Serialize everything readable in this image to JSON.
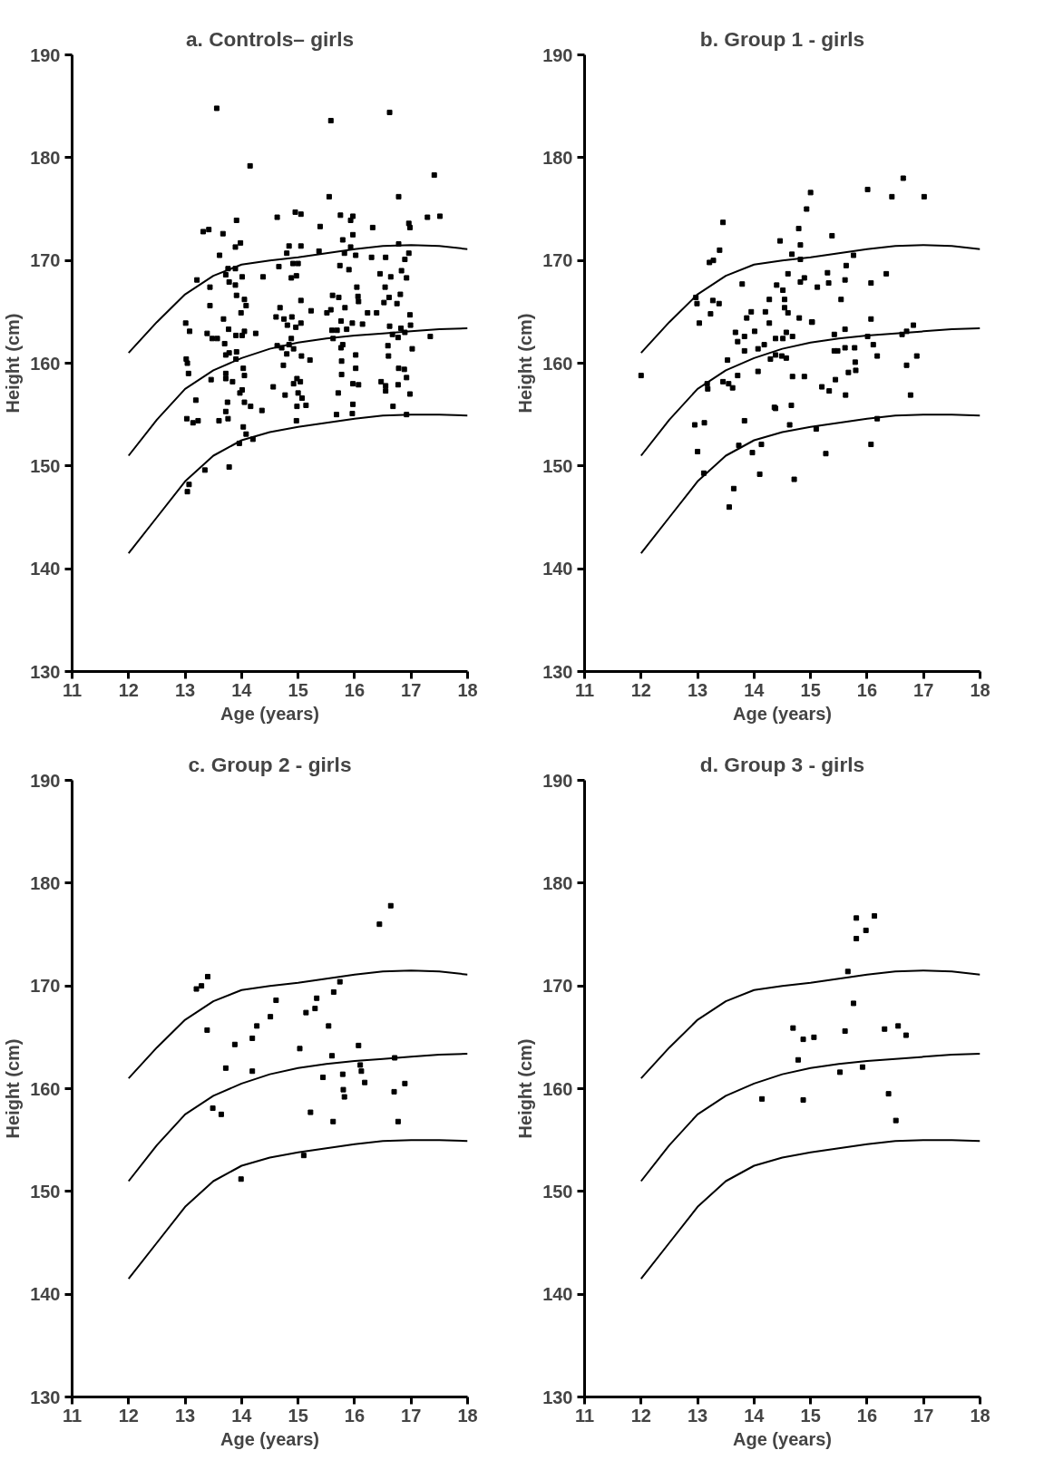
{
  "chart_data": [
    {
      "type": "scatter",
      "title": "a. Controls– girls",
      "xlabel": "Age (years)",
      "ylabel": "Height (cm)",
      "xlim": [
        11,
        18
      ],
      "ylim": [
        130,
        190
      ],
      "xticks": [
        11,
        12,
        13,
        14,
        15,
        16,
        17,
        18
      ],
      "yticks": [
        130,
        140,
        150,
        160,
        170,
        180,
        190
      ],
      "series": [
        {
          "marker": "square",
          "color": "#000000",
          "x": [
            13.56,
            15.58,
            16.62,
            14.15,
            17.41,
            15.55,
            16.78,
            17.29,
            17.51,
            14.63,
            14.95,
            15.05,
            13.91,
            13.32,
            13.42,
            13.67,
            15.75,
            15.97,
            15.93,
            15.39,
            16.32,
            15.97,
            16.96,
            16.98,
            13.89,
            13.98,
            14.84,
            15.05,
            15.79,
            15.93,
            16.78,
            13.61,
            14.8,
            14.66,
            15.37,
            15.82,
            16.02,
            16.3,
            16.55,
            16.96,
            16.89,
            15.0,
            14.91,
            15.74,
            15.9,
            13.76,
            13.89,
            13.21,
            13.44,
            13.72,
            14.01,
            13.78,
            13.89,
            14.38,
            14.88,
            14.97,
            16.45,
            16.64,
            16.83,
            16.92,
            16.04,
            13.91,
            14.05,
            14.08,
            13.44,
            13.99,
            15.05,
            15.23,
            14.68,
            15.61,
            15.72,
            15.51,
            15.58,
            16.06,
            16.07,
            15.83,
            16.54,
            16.61,
            16.52,
            16.75,
            16.81,
            16.23,
            16.39,
            13.01,
            13.08,
            13.39,
            13.48,
            13.57,
            13.68,
            13.77,
            13.9,
            14.01,
            14.05,
            14.25,
            13.7,
            14.61,
            14.75,
            14.89,
            14.81,
            14.96,
            15.05,
            14.63,
            14.71,
            14.88,
            14.84,
            14.8,
            14.92,
            15.06,
            15.21,
            15.6,
            15.69,
            15.76,
            15.96,
            15.86,
            15.62,
            15.79,
            15.76,
            16.02,
            16.14,
            16.62,
            16.82,
            16.67,
            16.77,
            16.89,
            16.98,
            16.99,
            17.34,
            17.02,
            16.59,
            16.6,
            13.02,
            13.04,
            13.06,
            13.72,
            13.78,
            13.91,
            13.9,
            14.03,
            14.05,
            13.84,
            13.72,
            13.72,
            13.46,
            14.74,
            15.77,
            16.02,
            15.77,
            16.78,
            16.88,
            16.92,
            14.98,
            15.04,
            14.92,
            14.56,
            14.77,
            14.01,
            13.97,
            14.05,
            14.16,
            14.36,
            13.75,
            13.72,
            13.6,
            13.76,
            13.19,
            13.03,
            13.14,
            13.23,
            15.0,
            15.07,
            14.98,
            15.14,
            14.97,
            15.71,
            15.68,
            15.97,
            16.07,
            15.97,
            15.96,
            16.47,
            16.55,
            16.55,
            16.77,
            16.98,
            16.68,
            16.92,
            14.03,
            14.08,
            14.2,
            13.96,
            13.78,
            13.35,
            13.07,
            13.04
          ],
          "values": [
            184.8,
            183.6,
            184.4,
            179.2,
            178.3,
            176.2,
            176.2,
            174.2,
            174.3,
            174.2,
            174.7,
            174.5,
            173.9,
            172.8,
            173.0,
            172.6,
            174.4,
            174.3,
            173.9,
            173.3,
            173.2,
            172.5,
            173.6,
            173.2,
            171.3,
            171.7,
            171.4,
            171.4,
            172.0,
            171.3,
            171.6,
            170.5,
            170.7,
            169.4,
            170.9,
            170.7,
            170.5,
            170.3,
            170.3,
            170.7,
            170.1,
            169.7,
            169.7,
            169.5,
            169.1,
            169.2,
            169.2,
            168.1,
            167.4,
            168.6,
            168.4,
            167.9,
            167.6,
            168.4,
            168.3,
            168.5,
            168.7,
            168.4,
            169.0,
            168.3,
            167.4,
            166.6,
            166.2,
            165.6,
            165.6,
            164.9,
            166.1,
            165.1,
            165.4,
            166.6,
            166.4,
            164.9,
            165.2,
            166.5,
            166.0,
            165.4,
            167.4,
            166.4,
            165.9,
            165.8,
            166.7,
            164.9,
            164.9,
            163.9,
            163.1,
            162.9,
            162.4,
            162.4,
            164.3,
            163.3,
            162.7,
            162.7,
            163.1,
            162.9,
            161.9,
            164.5,
            164.3,
            164.5,
            163.7,
            163.5,
            163.9,
            161.7,
            161.5,
            162.4,
            161.8,
            160.9,
            161.4,
            160.7,
            160.3,
            163.2,
            163.2,
            164.1,
            163.9,
            163.3,
            162.4,
            161.8,
            161.5,
            160.8,
            163.8,
            163.6,
            163.4,
            162.8,
            162.5,
            163.0,
            164.7,
            163.7,
            162.6,
            161.4,
            161.7,
            160.7,
            160.4,
            160.0,
            159.0,
            160.8,
            161.0,
            161.1,
            160.4,
            159.5,
            158.8,
            158.2,
            159.0,
            158.5,
            158.4,
            159.8,
            160.2,
            159.5,
            158.9,
            159.5,
            159.4,
            158.6,
            158.5,
            158.2,
            158.0,
            157.7,
            156.9,
            157.4,
            157.1,
            156.2,
            155.8,
            155.4,
            156.2,
            155.3,
            154.4,
            154.6,
            156.4,
            154.6,
            154.2,
            154.4,
            157.1,
            156.6,
            155.8,
            155.9,
            154.4,
            157.1,
            155.0,
            158.0,
            157.9,
            156.0,
            155.1,
            158.2,
            157.8,
            157.3,
            157.9,
            157.0,
            155.8,
            155.0,
            153.8,
            153.1,
            152.6,
            152.2,
            149.9,
            149.6,
            148.2,
            147.5
          ]
        },
        {
          "type": "line",
          "color": "#000000",
          "x": [
            12,
            12.5,
            13,
            13.5,
            14,
            14.5,
            15,
            15.5,
            16,
            16.5,
            17,
            17.5,
            18
          ],
          "values": [
            161,
            164,
            166.7,
            168.5,
            169.6,
            170,
            170.3,
            170.7,
            171.1,
            171.4,
            171.5,
            171.4,
            171.1
          ]
        },
        {
          "type": "line",
          "color": "#000000",
          "x": [
            12,
            12.5,
            13,
            13.5,
            14,
            14.5,
            15,
            15.5,
            16,
            16.5,
            17,
            17.5,
            18
          ],
          "values": [
            151,
            154.5,
            157.5,
            159.3,
            160.5,
            161.4,
            162,
            162.4,
            162.7,
            162.9,
            163.1,
            163.3,
            163.4
          ]
        },
        {
          "type": "line",
          "color": "#000000",
          "x": [
            12,
            12.5,
            13,
            13.5,
            14,
            14.5,
            15,
            15.5,
            16,
            16.5,
            17,
            17.5,
            18
          ],
          "values": [
            141.5,
            145,
            148.5,
            151,
            152.5,
            153.3,
            153.8,
            154.2,
            154.6,
            154.9,
            155,
            155,
            154.9
          ]
        }
      ]
    },
    {
      "type": "scatter",
      "title": "b. Group 1 - girls",
      "xlabel": "Age (years)",
      "ylabel": "Height (cm)",
      "xlim": [
        11,
        18
      ],
      "ylim": [
        130,
        190
      ],
      "xticks": [
        11,
        12,
        13,
        14,
        15,
        16,
        17,
        18
      ],
      "yticks": [
        130,
        140,
        150,
        160,
        170,
        180,
        190
      ],
      "series": [
        {
          "marker": "square",
          "color": "#000000",
          "x": [
            12.0,
            12.97,
            12.99,
            13.03,
            13.21,
            13.28,
            13.39,
            13.45,
            13.27,
            13.38,
            13.23,
            13.79,
            13.67,
            13.83,
            13.71,
            13.87,
            13.95,
            14.01,
            13.53,
            13.83,
            14.07,
            14.18,
            14.2,
            14.27,
            14.27,
            14.4,
            14.51,
            14.54,
            14.54,
            14.6,
            14.46,
            14.38,
            14.51,
            14.57,
            14.68,
            14.29,
            14.38,
            14.49,
            14.57,
            14.67,
            14.79,
            14.93,
            15.0,
            14.82,
            14.82,
            14.6,
            14.82,
            14.89,
            14.8,
            15.03,
            14.68,
            14.89,
            14.07,
            13.17,
            13.18,
            13.45,
            13.55,
            13.62,
            13.71,
            12.95,
            13.12,
            13.0,
            13.11,
            13.83,
            14.36,
            14.38,
            14.66,
            14.63,
            13.73,
            13.97,
            14.13,
            14.1,
            13.64,
            13.56,
            14.71,
            15.1,
            15.27,
            15.12,
            15.32,
            15.3,
            15.38,
            15.02,
            15.54,
            15.61,
            15.63,
            15.76,
            15.42,
            15.61,
            15.42,
            15.48,
            15.61,
            15.78,
            15.2,
            15.33,
            15.44,
            15.62,
            15.67,
            15.8,
            15.79,
            16.01,
            16.07,
            16.34,
            16.07,
            16.01,
            16.11,
            16.18,
            16.18,
            16.07,
            16.44,
            16.64,
            17.01,
            16.62,
            16.7,
            16.82,
            16.7,
            16.88,
            16.77
          ],
          "values": [
            158.8,
            166.4,
            165.8,
            163.9,
            169.8,
            170.0,
            171.0,
            173.7,
            166.1,
            165.8,
            164.8,
            167.7,
            163.0,
            162.6,
            162.1,
            164.4,
            165.0,
            163.1,
            160.3,
            161.2,
            161.4,
            161.8,
            165.0,
            166.2,
            163.9,
            167.6,
            167.1,
            166.2,
            165.4,
            164.9,
            171.9,
            162.4,
            162.4,
            163.0,
            162.6,
            160.4,
            160.8,
            160.7,
            160.5,
            170.6,
            173.1,
            175.0,
            176.6,
            171.5,
            170.1,
            168.7,
            167.9,
            168.3,
            164.4,
            164.0,
            158.7,
            158.7,
            159.2,
            158.0,
            157.5,
            158.2,
            158.0,
            157.6,
            158.8,
            154.0,
            154.2,
            151.4,
            149.3,
            154.4,
            155.7,
            155.6,
            155.9,
            154.0,
            152.0,
            151.3,
            152.1,
            149.2,
            147.8,
            146.0,
            148.7,
            153.6,
            151.2,
            167.4,
            167.8,
            168.8,
            172.4,
            164.0,
            166.2,
            168.1,
            169.5,
            170.5,
            162.8,
            163.3,
            161.2,
            161.2,
            161.5,
            161.5,
            157.7,
            157.3,
            158.4,
            156.9,
            159.1,
            159.3,
            160.1,
            176.9,
            167.8,
            168.7,
            164.3,
            162.6,
            161.8,
            160.7,
            154.6,
            152.1,
            176.2,
            178.0,
            176.2,
            162.8,
            163.1,
            163.7,
            159.8,
            160.7,
            156.9
          ]
        },
        {
          "type": "line",
          "color": "#000000",
          "x": [
            12,
            12.5,
            13,
            13.5,
            14,
            14.5,
            15,
            15.5,
            16,
            16.5,
            17,
            17.5,
            18
          ],
          "values": [
            161,
            164,
            166.7,
            168.5,
            169.6,
            170,
            170.3,
            170.7,
            171.1,
            171.4,
            171.5,
            171.4,
            171.1
          ]
        },
        {
          "type": "line",
          "color": "#000000",
          "x": [
            12,
            12.5,
            13,
            13.5,
            14,
            14.5,
            15,
            15.5,
            16,
            16.5,
            17,
            17.5,
            18
          ],
          "values": [
            151,
            154.5,
            157.5,
            159.3,
            160.5,
            161.4,
            162,
            162.4,
            162.7,
            162.9,
            163.1,
            163.3,
            163.4
          ]
        },
        {
          "type": "line",
          "color": "#000000",
          "x": [
            12,
            12.5,
            13,
            13.5,
            14,
            14.5,
            15,
            15.5,
            16,
            16.5,
            17,
            17.5,
            18
          ],
          "values": [
            141.5,
            145,
            148.5,
            151,
            152.5,
            153.3,
            153.8,
            154.2,
            154.6,
            154.9,
            155,
            155,
            154.9
          ]
        }
      ]
    },
    {
      "type": "scatter",
      "title": "c. Group 2 - girls",
      "xlabel": "Age (years)",
      "ylabel": "Height (cm)",
      "xlim": [
        11,
        18
      ],
      "ylim": [
        130,
        190
      ],
      "xticks": [
        11,
        12,
        13,
        14,
        15,
        16,
        17,
        18
      ],
      "yticks": [
        130,
        140,
        150,
        160,
        170,
        180,
        190
      ],
      "series": [
        {
          "marker": "square",
          "color": "#000000",
          "x": [
            13.2,
            13.29,
            13.4,
            13.39,
            13.49,
            13.64,
            13.72,
            13.88,
            13.99,
            14.19,
            14.27,
            14.19,
            14.51,
            14.61,
            15.03,
            15.14,
            15.3,
            15.33,
            15.1,
            15.22,
            15.54,
            15.6,
            15.44,
            15.63,
            15.74,
            15.79,
            15.8,
            15.82,
            15.62,
            16.07,
            16.1,
            16.12,
            16.18,
            16.44,
            16.64,
            16.71,
            16.7,
            16.89,
            16.77
          ],
          "values": [
            169.7,
            170.0,
            170.9,
            165.7,
            158.1,
            157.5,
            162.0,
            164.3,
            151.2,
            164.9,
            166.1,
            161.7,
            167.0,
            168.6,
            163.9,
            167.4,
            167.8,
            168.8,
            153.5,
            157.7,
            166.1,
            163.2,
            161.1,
            169.4,
            170.4,
            161.4,
            159.9,
            159.2,
            156.8,
            164.2,
            162.3,
            161.7,
            160.6,
            176.0,
            177.8,
            163.0,
            159.7,
            160.5,
            156.8
          ]
        },
        {
          "type": "line",
          "color": "#000000",
          "x": [
            12,
            12.5,
            13,
            13.5,
            14,
            14.5,
            15,
            15.5,
            16,
            16.5,
            17,
            17.5,
            18
          ],
          "values": [
            161,
            164,
            166.7,
            168.5,
            169.6,
            170,
            170.3,
            170.7,
            171.1,
            171.4,
            171.5,
            171.4,
            171.1
          ]
        },
        {
          "type": "line",
          "color": "#000000",
          "x": [
            12,
            12.5,
            13,
            13.5,
            14,
            14.5,
            15,
            15.5,
            16,
            16.5,
            17,
            17.5,
            18
          ],
          "values": [
            151,
            154.5,
            157.5,
            159.3,
            160.5,
            161.4,
            162,
            162.4,
            162.7,
            162.9,
            163.1,
            163.3,
            163.4
          ]
        },
        {
          "type": "line",
          "color": "#000000",
          "x": [
            12,
            12.5,
            13,
            13.5,
            14,
            14.5,
            15,
            15.5,
            16,
            16.5,
            17,
            17.5,
            18
          ],
          "values": [
            141.5,
            145,
            148.5,
            151,
            152.5,
            153.3,
            153.8,
            154.2,
            154.6,
            154.9,
            155,
            155,
            154.9
          ]
        }
      ]
    },
    {
      "type": "scatter",
      "title": "d. Group 3 - girls",
      "xlabel": "Age (years)",
      "ylabel": "Height (cm)",
      "xlim": [
        11,
        18
      ],
      "ylim": [
        130,
        190
      ],
      "xticks": [
        11,
        12,
        13,
        14,
        15,
        16,
        17,
        18
      ],
      "yticks": [
        130,
        140,
        150,
        160,
        170,
        180,
        190
      ],
      "series": [
        {
          "marker": "square",
          "color": "#000000",
          "x": [
            14.14,
            14.69,
            14.87,
            15.06,
            14.78,
            14.87,
            15.52,
            15.61,
            15.66,
            15.76,
            15.81,
            15.81,
            15.98,
            16.13,
            15.92,
            16.31,
            16.55,
            16.69,
            16.38,
            16.51
          ],
          "values": [
            159.0,
            165.9,
            164.8,
            165.0,
            162.8,
            158.9,
            161.6,
            165.6,
            171.4,
            168.3,
            176.6,
            174.6,
            175.4,
            176.8,
            162.1,
            165.8,
            166.1,
            165.2,
            159.5,
            156.9
          ]
        },
        {
          "type": "line",
          "color": "#000000",
          "x": [
            12,
            12.5,
            13,
            13.5,
            14,
            14.5,
            15,
            15.5,
            16,
            16.5,
            17,
            17.5,
            18
          ],
          "values": [
            161,
            164,
            166.7,
            168.5,
            169.6,
            170,
            170.3,
            170.7,
            171.1,
            171.4,
            171.5,
            171.4,
            171.1
          ]
        },
        {
          "type": "line",
          "color": "#000000",
          "x": [
            12,
            12.5,
            13,
            13.5,
            14,
            14.5,
            15,
            15.5,
            16,
            16.5,
            17,
            17.5,
            18
          ],
          "values": [
            151,
            154.5,
            157.5,
            159.3,
            160.5,
            161.4,
            162,
            162.4,
            162.7,
            162.9,
            163.1,
            163.3,
            163.4
          ]
        },
        {
          "type": "line",
          "color": "#000000",
          "x": [
            12,
            12.5,
            13,
            13.5,
            14,
            14.5,
            15,
            15.5,
            16,
            16.5,
            17,
            17.5,
            18
          ],
          "values": [
            141.5,
            145,
            148.5,
            151,
            152.5,
            153.3,
            153.8,
            154.2,
            154.6,
            154.9,
            155,
            155,
            154.9
          ]
        }
      ]
    }
  ]
}
